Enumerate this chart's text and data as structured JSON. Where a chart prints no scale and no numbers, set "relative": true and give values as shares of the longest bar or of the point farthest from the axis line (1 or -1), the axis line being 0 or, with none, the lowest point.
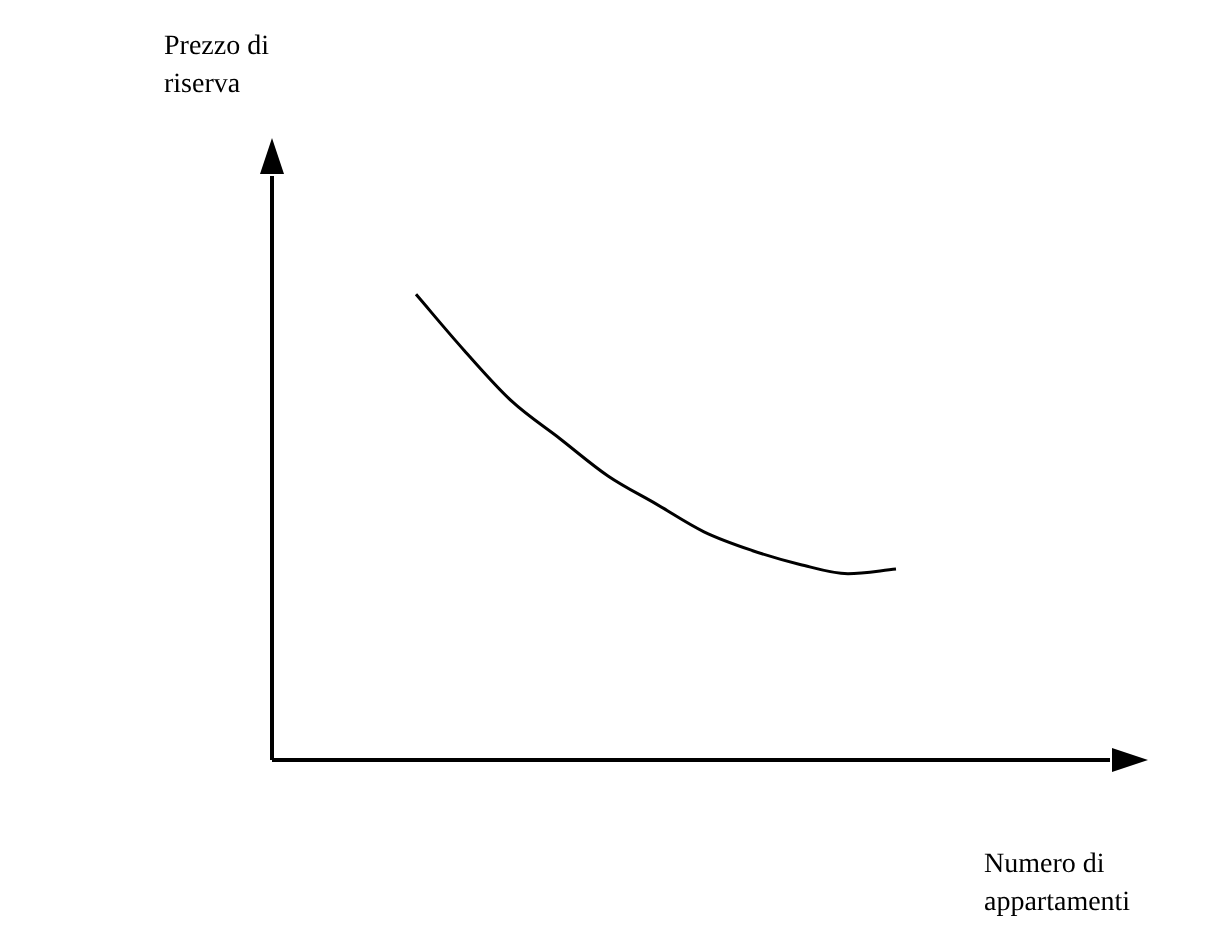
{
  "chart_data": {
    "type": "line",
    "relative": true,
    "xlabel": "Numero di appartamenti",
    "annotations": [
      "Prezzo di riserva"
    ],
    "categories": [
      null,
      null,
      null,
      null,
      null,
      null,
      null,
      null,
      null,
      null,
      null,
      null,
      null,
      null,
      null,
      null,
      null,
      null,
      null
    ],
    "series": [
      {
        "color": "#000000",
        "values": [
          null,
          null,
          null,
          1,
          0.88,
          0.77,
          0.69,
          0.61,
          0.55,
          0.49,
          0.45,
          0.42,
          0.4,
          0.41,
          null,
          null,
          null,
          null,
          null
        ]
      }
    ],
    "marker": "none",
    "legend": false
  }
}
